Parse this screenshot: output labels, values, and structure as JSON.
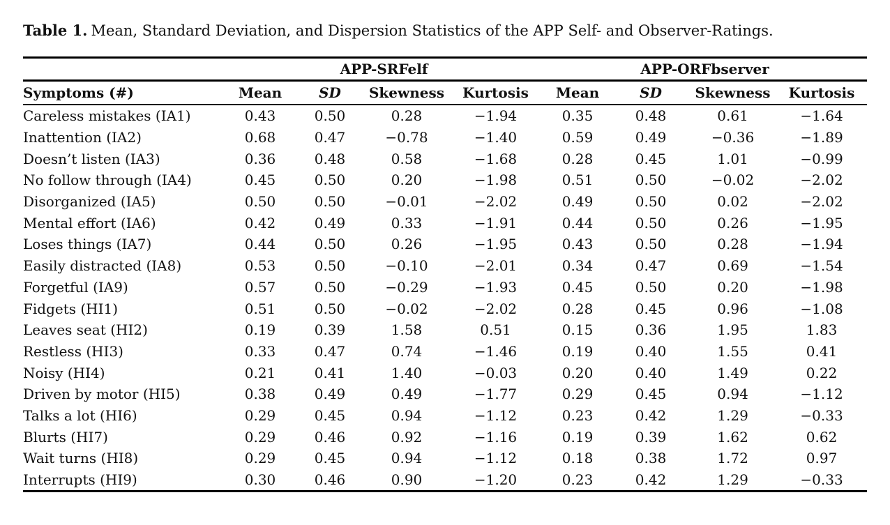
{
  "title": {
    "label": "Table 1.",
    "text": "Mean, Standard Deviation, and Dispersion Statistics of the APP Self- and Observer-Ratings."
  },
  "table": {
    "group_headers": [
      "APP-SRFelf",
      "APP-ORFbserver"
    ],
    "columns": [
      "Symptoms (#)",
      "Mean",
      "SD",
      "Skewness",
      "Kurtosis",
      "Mean",
      "SD",
      "Skewness",
      "Kurtosis"
    ],
    "column_names": [
      "symptoms",
      "mean-self",
      "sd-self",
      "skewness-self",
      "kurtosis-self",
      "mean-observer",
      "sd-observer",
      "skewness-observer",
      "kurtosis-observer"
    ],
    "rows": [
      [
        "Careless mistakes (IA1)",
        "0.43",
        "0.50",
        "0.28",
        "−1.94",
        "0.35",
        "0.48",
        "0.61",
        "−1.64"
      ],
      [
        "Inattention (IA2)",
        "0.68",
        "0.47",
        "−0.78",
        "−1.40",
        "0.59",
        "0.49",
        "−0.36",
        "−1.89"
      ],
      [
        "Doesn’t listen (IA3)",
        "0.36",
        "0.48",
        "0.58",
        "−1.68",
        "0.28",
        "0.45",
        "1.01",
        "−0.99"
      ],
      [
        "No follow through (IA4)",
        "0.45",
        "0.50",
        "0.20",
        "−1.98",
        "0.51",
        "0.50",
        "−0.02",
        "−2.02"
      ],
      [
        "Disorganized (IA5)",
        "0.50",
        "0.50",
        "−0.01",
        "−2.02",
        "0.49",
        "0.50",
        "0.02",
        "−2.02"
      ],
      [
        "Mental effort (IA6)",
        "0.42",
        "0.49",
        "0.33",
        "−1.91",
        "0.44",
        "0.50",
        "0.26",
        "−1.95"
      ],
      [
        "Loses things (IA7)",
        "0.44",
        "0.50",
        "0.26",
        "−1.95",
        "0.43",
        "0.50",
        "0.28",
        "−1.94"
      ],
      [
        "Easily distracted (IA8)",
        "0.53",
        "0.50",
        "−0.10",
        "−2.01",
        "0.34",
        "0.47",
        "0.69",
        "−1.54"
      ],
      [
        "Forgetful (IA9)",
        "0.57",
        "0.50",
        "−0.29",
        "−1.93",
        "0.45",
        "0.50",
        "0.20",
        "−1.98"
      ],
      [
        "Fidgets (HI1)",
        "0.51",
        "0.50",
        "−0.02",
        "−2.02",
        "0.28",
        "0.45",
        "0.96",
        "−1.08"
      ],
      [
        "Leaves seat (HI2)",
        "0.19",
        "0.39",
        "1.58",
        "0.51",
        "0.15",
        "0.36",
        "1.95",
        "1.83"
      ],
      [
        "Restless (HI3)",
        "0.33",
        "0.47",
        "0.74",
        "−1.46",
        "0.19",
        "0.40",
        "1.55",
        "0.41"
      ],
      [
        "Noisy (HI4)",
        "0.21",
        "0.41",
        "1.40",
        "−0.03",
        "0.20",
        "0.40",
        "1.49",
        "0.22"
      ],
      [
        "Driven by motor (HI5)",
        "0.38",
        "0.49",
        "0.49",
        "−1.77",
        "0.29",
        "0.45",
        "0.94",
        "−1.12"
      ],
      [
        "Talks a lot (HI6)",
        "0.29",
        "0.45",
        "0.94",
        "−1.12",
        "0.23",
        "0.42",
        "1.29",
        "−0.33"
      ],
      [
        "Blurts (HI7)",
        "0.29",
        "0.46",
        "0.92",
        "−1.16",
        "0.19",
        "0.39",
        "1.62",
        "0.62"
      ],
      [
        "Wait turns (HI8)",
        "0.29",
        "0.45",
        "0.94",
        "−1.12",
        "0.18",
        "0.38",
        "1.72",
        "0.97"
      ],
      [
        "Interrupts (HI9)",
        "0.30",
        "0.46",
        "0.90",
        "−1.20",
        "0.23",
        "0.42",
        "1.29",
        "−0.33"
      ]
    ]
  }
}
